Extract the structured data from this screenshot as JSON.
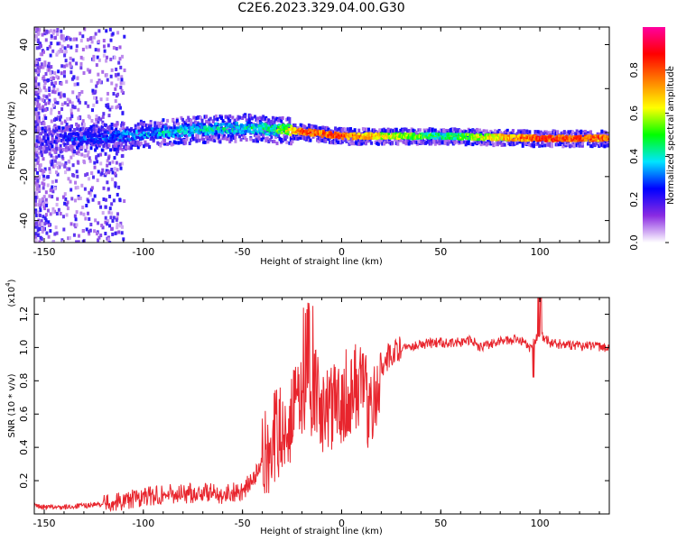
{
  "title": "C2E6.2023.329.04.00.G30",
  "chart_data": [
    {
      "type": "heatmap",
      "xlabel": "Height of straight line (km)",
      "ylabel": "Frequency (Hz)",
      "xlim": [
        -155,
        135
      ],
      "ylim": [
        -50,
        48
      ],
      "xticks": [
        -150,
        -100,
        -50,
        0,
        50,
        100
      ],
      "yticks": [
        -40,
        -20,
        0,
        20,
        40
      ],
      "colorbar": {
        "label": "Normalized spectral amplitude",
        "range": [
          0.0,
          1.0
        ],
        "ticks": [
          "0.0",
          "0.2",
          "0.4",
          "0.6",
          "0.8"
        ],
        "colors": [
          "#ffffff",
          "#8a2be2",
          "#0000ff",
          "#00e5ff",
          "#00ff00",
          "#ffff00",
          "#ff8000",
          "#ff0000",
          "#ff00a0"
        ]
      },
      "ridge": {
        "description_values": [
          {
            "x": -130,
            "freq": -2,
            "amplitude": 0.35
          },
          {
            "x": -100,
            "freq": 0,
            "amplitude": 0.45
          },
          {
            "x": -75,
            "freq": 2,
            "amplitude": 0.5
          },
          {
            "x": -50,
            "freq": 3,
            "amplitude": 0.5
          },
          {
            "x": -35,
            "freq": 2,
            "amplitude": 0.55
          },
          {
            "x": -20,
            "freq": 1,
            "amplitude": 0.9
          },
          {
            "x": 0,
            "freq": -1,
            "amplitude": 0.9
          },
          {
            "x": 50,
            "freq": -1,
            "amplitude": 0.55
          },
          {
            "x": 100,
            "freq": -2,
            "amplitude": 0.95
          },
          {
            "x": 135,
            "freq": -2,
            "amplitude": 0.9
          }
        ]
      }
    },
    {
      "type": "line",
      "xlabel": "Height of straight line (km)",
      "ylabel": "SNR (10 * v/v)",
      "yscale_label": "(x10",
      "yscale_exp": "4",
      "yscale_close": ")",
      "xlim": [
        -155,
        135
      ],
      "ylim": [
        0.0,
        1.3
      ],
      "xticks": [
        -150,
        -100,
        -50,
        0,
        50,
        100
      ],
      "yticks": [
        0.2,
        0.4,
        0.6,
        0.8,
        1.0,
        1.2
      ],
      "color": "#e8252d",
      "series": [
        {
          "x": [
            -155,
            -150,
            -140,
            -130,
            -120,
            -110,
            -100,
            -90,
            -80,
            -70,
            -60,
            -50,
            -45,
            -40,
            -35,
            -30,
            -25,
            -20,
            -15,
            -10,
            -5,
            0,
            5,
            10,
            15,
            20,
            25,
            30,
            40,
            50,
            60,
            65,
            70,
            80,
            90,
            95,
            100,
            105,
            110,
            120,
            135
          ],
          "values": [
            0.05,
            0.04,
            0.04,
            0.05,
            0.06,
            0.08,
            0.1,
            0.12,
            0.12,
            0.13,
            0.12,
            0.14,
            0.2,
            0.3,
            0.45,
            0.5,
            0.6,
            0.7,
            0.75,
            0.65,
            0.6,
            0.7,
            0.75,
            0.8,
            0.6,
            0.9,
            0.96,
            1.0,
            1.02,
            1.03,
            1.03,
            1.05,
            1.0,
            1.04,
            1.05,
            1.0,
            1.08,
            1.03,
            1.02,
            1.01,
            1.0
          ]
        }
      ]
    }
  ]
}
